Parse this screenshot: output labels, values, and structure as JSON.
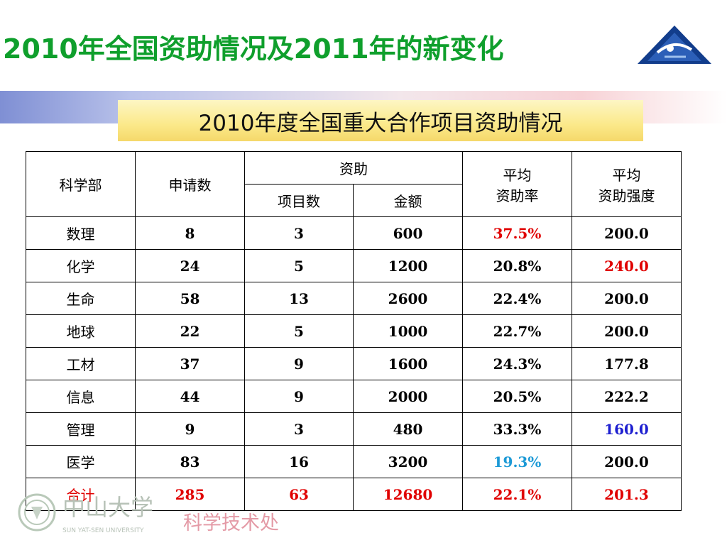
{
  "slide_title": "2010年全国资助情况及2011年的新变化",
  "subtitle": "2010年度全国重大合作项目资助情况",
  "colors": {
    "title": "#0f9f2c",
    "highlight_red": "#e00000",
    "highlight_blue": "#1d1fd0",
    "highlight_cyan": "#1d9ad6"
  },
  "table": {
    "headers": {
      "dept": "科学部",
      "apply": "申请数",
      "funding": "资助",
      "projects": "项目数",
      "amount": "金额",
      "avg_rate_l1": "平均",
      "avg_rate_l2": "资助率",
      "avg_int_l1": "平均",
      "avg_int_l2": "资助强度"
    },
    "rows": [
      {
        "dept": "数理",
        "apply": "8",
        "projects": "3",
        "amount": "600",
        "rate": "37.5%",
        "intensity": "200.0",
        "rate_color": "red",
        "int_color": ""
      },
      {
        "dept": "化学",
        "apply": "24",
        "projects": "5",
        "amount": "1200",
        "rate": "20.8%",
        "intensity": "240.0",
        "rate_color": "",
        "int_color": "red"
      },
      {
        "dept": "生命",
        "apply": "58",
        "projects": "13",
        "amount": "2600",
        "rate": "22.4%",
        "intensity": "200.0",
        "rate_color": "",
        "int_color": ""
      },
      {
        "dept": "地球",
        "apply": "22",
        "projects": "5",
        "amount": "1000",
        "rate": "22.7%",
        "intensity": "200.0",
        "rate_color": "",
        "int_color": ""
      },
      {
        "dept": "工材",
        "apply": "37",
        "projects": "9",
        "amount": "1600",
        "rate": "24.3%",
        "intensity": "177.8",
        "rate_color": "",
        "int_color": ""
      },
      {
        "dept": "信息",
        "apply": "44",
        "projects": "9",
        "amount": "2000",
        "rate": "20.5%",
        "intensity": "222.2",
        "rate_color": "",
        "int_color": ""
      },
      {
        "dept": "管理",
        "apply": "9",
        "projects": "3",
        "amount": "480",
        "rate": "33.3%",
        "intensity": "160.0",
        "rate_color": "",
        "int_color": "blue"
      },
      {
        "dept": "医学",
        "apply": "83",
        "projects": "16",
        "amount": "3200",
        "rate": "19.3%",
        "intensity": "200.0",
        "rate_color": "cyan",
        "int_color": ""
      }
    ],
    "total": {
      "dept": "合计",
      "apply": "285",
      "projects": "63",
      "amount": "12680",
      "rate": "22.1%",
      "intensity": "201.3"
    }
  },
  "footer": {
    "university_cn": "中山大学",
    "university_en": "SUN YAT-SEN UNIVERSITY",
    "office": "科学技术处"
  }
}
